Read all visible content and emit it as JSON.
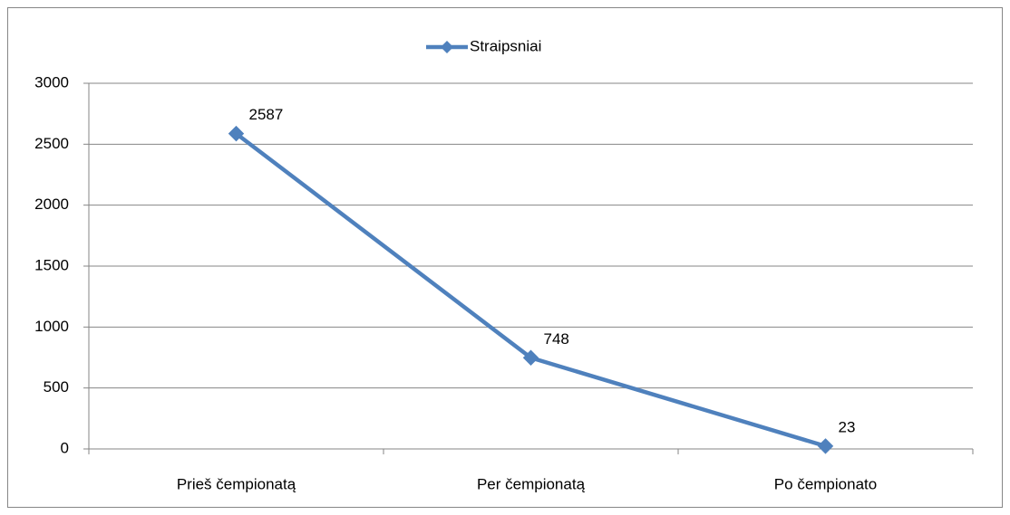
{
  "chart_data": {
    "type": "line",
    "categories": [
      "Prieš čempionatą",
      "Per čempionatą",
      "Po čempionato"
    ],
    "series": [
      {
        "name": "Straipsniai",
        "color": "#4f81bd",
        "values": [
          2587,
          748,
          23
        ]
      }
    ],
    "ylim": [
      0,
      3000
    ],
    "yticks": [
      0,
      500,
      1000,
      1500,
      2000,
      2500,
      3000
    ],
    "grid": true,
    "legend": "top"
  }
}
